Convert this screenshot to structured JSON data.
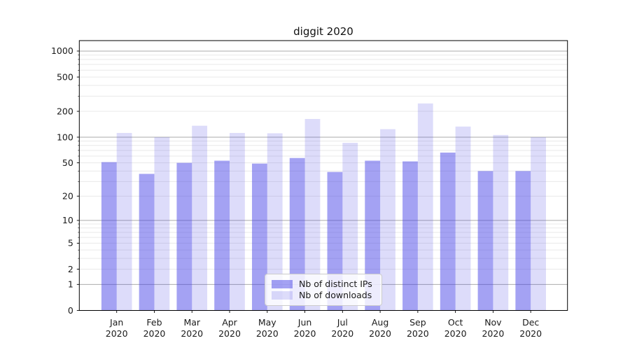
{
  "chart_data": {
    "type": "bar",
    "title": "diggit 2020",
    "categories": [
      "Jan",
      "Feb",
      "Mar",
      "Apr",
      "May",
      "Jun",
      "Jul",
      "Aug",
      "Sep",
      "Oct",
      "Nov",
      "Dec"
    ],
    "x_year_label": "2020",
    "series": [
      {
        "name": "Nb of distinct IPs",
        "color": "#403ce6",
        "alpha": 0.48,
        "values": [
          51,
          37,
          50,
          53,
          49,
          57,
          39,
          53,
          52,
          66,
          40,
          40
        ]
      },
      {
        "name": "Nb of downloads",
        "color": "#403ce6",
        "alpha": 0.18,
        "values": [
          112,
          100,
          136,
          112,
          111,
          163,
          86,
          124,
          247,
          133,
          106,
          100
        ]
      }
    ],
    "yscale": "log1p",
    "ylim": [
      0,
      1300
    ],
    "y_ticks": [
      0,
      1,
      2,
      5,
      10,
      20,
      50,
      100,
      200,
      500,
      1000
    ],
    "y_major_gridlines": [
      1,
      10,
      100,
      1000
    ],
    "grid": "horizontal",
    "legend_position": "lower-center",
    "colors": {
      "axis": "#000000",
      "tick_label": "#1a1a1a",
      "major_grid": "#ababab",
      "minor_grid": "#e9e9e9",
      "legend_border": "#cccccc",
      "background": "#ffffff"
    }
  }
}
